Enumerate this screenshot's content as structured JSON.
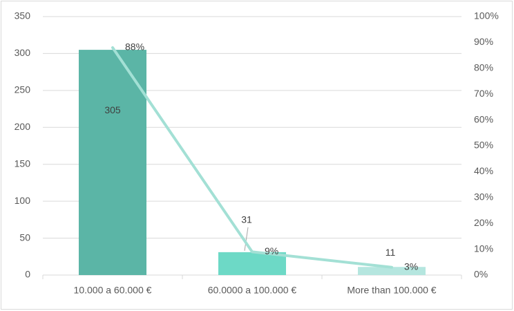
{
  "chart_data": {
    "type": "bar_line",
    "categories": [
      "10.000 a 60.000 €",
      "60.0000 a 100.000 €",
      "More than 100.000 €"
    ],
    "series": [
      {
        "type": "bar",
        "colors": [
          "#5bb5a6",
          "#6dd9c6",
          "#b5e6df"
        ],
        "values": [
          305,
          31,
          11
        ]
      },
      {
        "type": "line",
        "axis": "y2",
        "color": "#a3e0d5",
        "values": [
          88,
          9,
          3
        ],
        "value_labels": [
          "88%",
          "9%",
          "3%"
        ]
      }
    ],
    "ylim": [
      0,
      350
    ],
    "yticks": [
      0,
      50,
      100,
      150,
      200,
      250,
      300,
      350
    ],
    "y2lim": [
      0,
      100
    ],
    "y2ticks": [
      {
        "value": 0,
        "label": "0%"
      },
      {
        "value": 10,
        "label": "10%"
      },
      {
        "value": 20,
        "label": "20%"
      },
      {
        "value": 30,
        "label": "30%"
      },
      {
        "value": 40,
        "label": "40%"
      },
      {
        "value": 50,
        "label": "50%"
      },
      {
        "value": 60,
        "label": "60%"
      },
      {
        "value": 70,
        "label": "70%"
      },
      {
        "value": 80,
        "label": "80%"
      },
      {
        "value": 90,
        "label": "90%"
      },
      {
        "value": 100,
        "label": "100%"
      }
    ],
    "grid": true
  }
}
